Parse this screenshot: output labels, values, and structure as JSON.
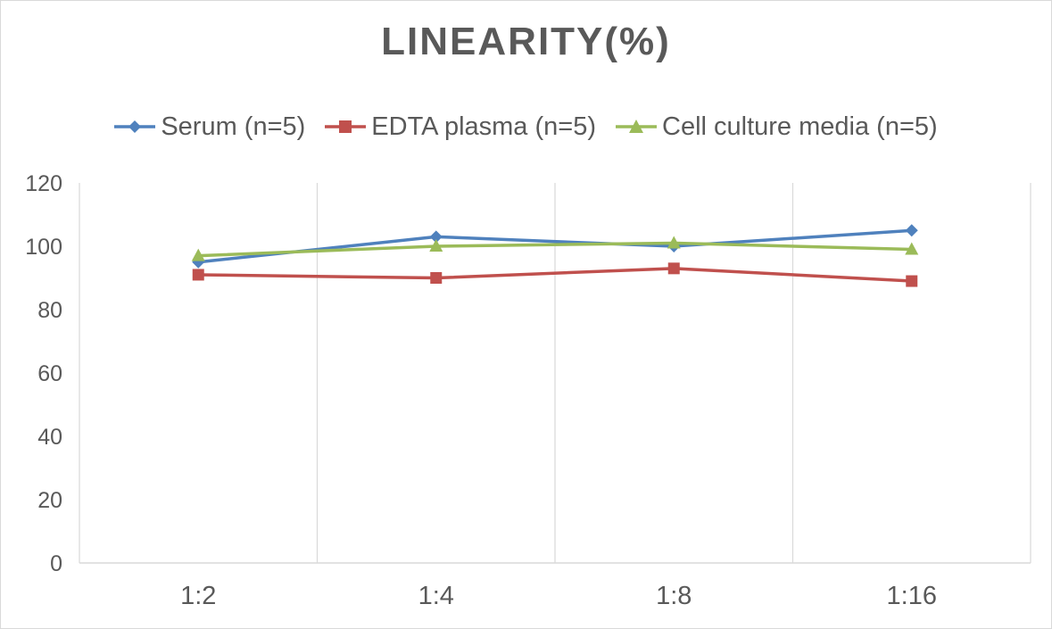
{
  "chart_data": {
    "type": "line",
    "title": "LINEARITY(%)",
    "categories": [
      "1:2",
      "1:4",
      "1:8",
      "1:16"
    ],
    "series": [
      {
        "name": "Serum (n=5)",
        "values": [
          95,
          103,
          100,
          105
        ],
        "color": "#4f81bd",
        "marker": "diamond"
      },
      {
        "name": "EDTA plasma (n=5)",
        "values": [
          91,
          90,
          93,
          89
        ],
        "color": "#c0504d",
        "marker": "square"
      },
      {
        "name": "Cell culture media (n=5)",
        "values": [
          97,
          100,
          101,
          99
        ],
        "color": "#9bbb59",
        "marker": "triangle"
      }
    ],
    "ylim": [
      0,
      120
    ],
    "yticks": [
      0,
      20,
      40,
      60,
      80,
      100,
      120
    ],
    "xlabel": "",
    "ylabel": "",
    "grid": "vertical",
    "legend_position": "top"
  }
}
